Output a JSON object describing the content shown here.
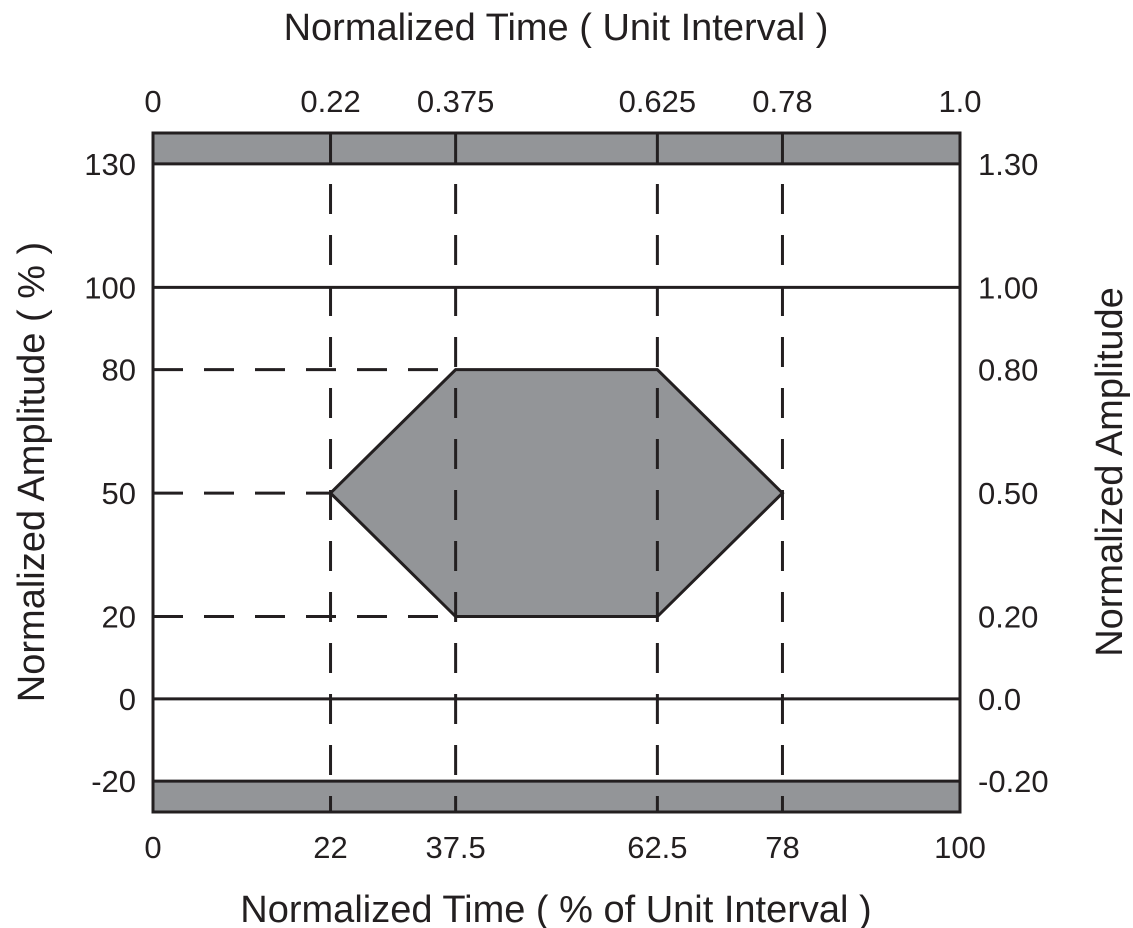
{
  "chart_data": {
    "type": "eye-mask",
    "top_axis": {
      "title": "Normalized Time ( Unit Interval )",
      "ticks": [
        {
          "value": 0,
          "label": "0"
        },
        {
          "value": 0.22,
          "label": "0.22"
        },
        {
          "value": 0.375,
          "label": "0.375"
        },
        {
          "value": 0.625,
          "label": "0.625"
        },
        {
          "value": 0.78,
          "label": "0.78"
        },
        {
          "value": 1.0,
          "label": "1.0"
        }
      ],
      "range": [
        0,
        1.0
      ]
    },
    "bottom_axis": {
      "title": "Normalized Time ( % of Unit Interval )",
      "ticks": [
        {
          "value": 0,
          "label": "0"
        },
        {
          "value": 22,
          "label": "22"
        },
        {
          "value": 37.5,
          "label": "37.5"
        },
        {
          "value": 62.5,
          "label": "62.5"
        },
        {
          "value": 78,
          "label": "78"
        },
        {
          "value": 100,
          "label": "100"
        }
      ],
      "range": [
        0,
        100
      ]
    },
    "left_axis": {
      "title": "Normalized Amplitude ( % )",
      "ticks": [
        {
          "value": 130,
          "label": "130"
        },
        {
          "value": 100,
          "label": "100"
        },
        {
          "value": 80,
          "label": "80"
        },
        {
          "value": 50,
          "label": "50"
        },
        {
          "value": 20,
          "label": "20"
        },
        {
          "value": 0,
          "label": "0"
        },
        {
          "value": -20,
          "label": "-20"
        }
      ],
      "range": [
        -27.5,
        137.5
      ]
    },
    "right_axis": {
      "title": "Normalized Amplitude",
      "ticks": [
        {
          "value": 130,
          "label": "1.30"
        },
        {
          "value": 100,
          "label": "1.00"
        },
        {
          "value": 80,
          "label": "0.80"
        },
        {
          "value": 50,
          "label": "0.50"
        },
        {
          "value": 20,
          "label": "0.20"
        },
        {
          "value": 0,
          "label": "0.0"
        },
        {
          "value": -20,
          "label": "-0.20"
        }
      ]
    },
    "mask_polygon": [
      {
        "x": 22,
        "y": 50
      },
      {
        "x": 37.5,
        "y": 80
      },
      {
        "x": 62.5,
        "y": 80
      },
      {
        "x": 78,
        "y": 50
      },
      {
        "x": 62.5,
        "y": 20
      },
      {
        "x": 37.5,
        "y": 20
      }
    ],
    "keepout_bands": [
      {
        "from": 130,
        "to": 137.5
      },
      {
        "from": -27.5,
        "to": -20
      }
    ],
    "solid_levels": [
      130,
      100,
      0,
      -20
    ],
    "dashed_vertical": [
      22,
      37.5,
      62.5,
      78
    ],
    "dashed_horizontal": [
      {
        "y": 80,
        "to_x": 37.5
      },
      {
        "y": 50,
        "to_x": 22
      },
      {
        "y": 20,
        "to_x": 37.5
      }
    ],
    "colors": {
      "mask_fill": "#939598",
      "line": "#231f20",
      "background": "#ffffff"
    }
  }
}
